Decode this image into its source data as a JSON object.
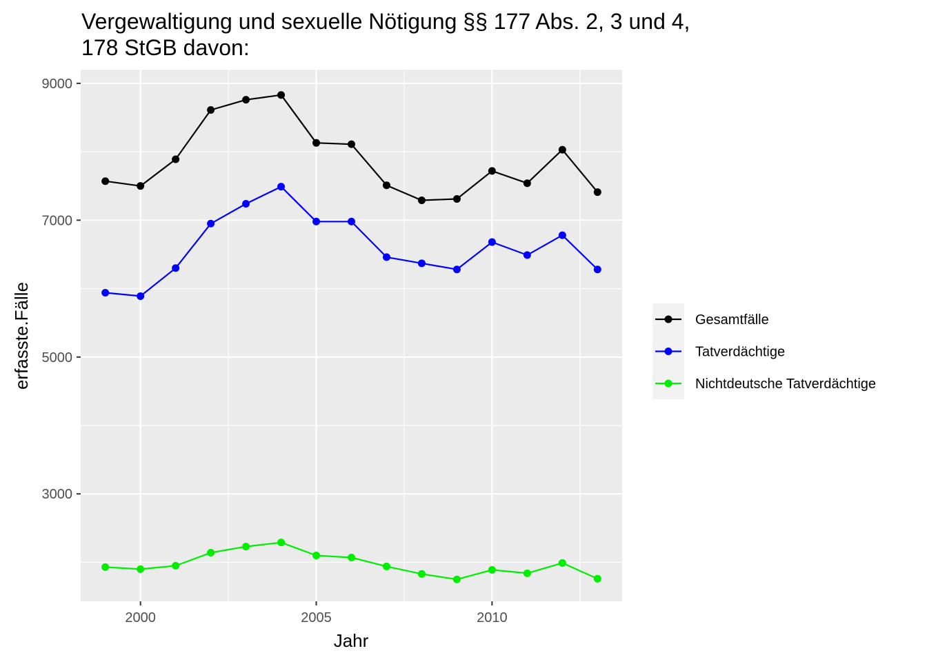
{
  "chart_data": {
    "type": "line",
    "title_line1": "Vergewaltigung und sexuelle Nötigung §§ 177 Abs. 2, 3 und 4,",
    "title_line2": "178 StGB davon:",
    "xlabel": "Jahr",
    "ylabel": "erfasste.Fälle",
    "x": [
      1999,
      2000,
      2001,
      2002,
      2003,
      2004,
      2005,
      2006,
      2007,
      2008,
      2009,
      2010,
      2011,
      2012,
      2013
    ],
    "xlim": [
      1998.3,
      2013.7
    ],
    "ylim": [
      1430,
      9200
    ],
    "x_ticks": [
      "2000",
      "2005",
      "2010"
    ],
    "x_tick_values": [
      2000,
      2005,
      2010
    ],
    "y_ticks": [
      "3000",
      "5000",
      "7000",
      "9000"
    ],
    "y_tick_values": [
      3000,
      5000,
      7000,
      9000
    ],
    "grid": true,
    "legend_position": "right",
    "series": [
      {
        "name": "Gesamtfälle",
        "color": "#000000",
        "values": [
          7570,
          7500,
          7890,
          8610,
          8760,
          8830,
          8130,
          8110,
          7510,
          7290,
          7310,
          7720,
          7540,
          8030,
          7410
        ]
      },
      {
        "name": "Tatverdächtige",
        "color": "#0000ff",
        "values": [
          5940,
          5890,
          6300,
          6950,
          7240,
          7490,
          6980,
          6980,
          6460,
          6370,
          6280,
          6680,
          6490,
          6780,
          6280
        ]
      },
      {
        "name": "Nichtdeutsche Tatverdächtige",
        "color": "#00ee00",
        "values": [
          1930,
          1900,
          1950,
          2140,
          2230,
          2290,
          2100,
          2070,
          1940,
          1830,
          1750,
          1890,
          1840,
          1990,
          1760
        ]
      }
    ]
  }
}
